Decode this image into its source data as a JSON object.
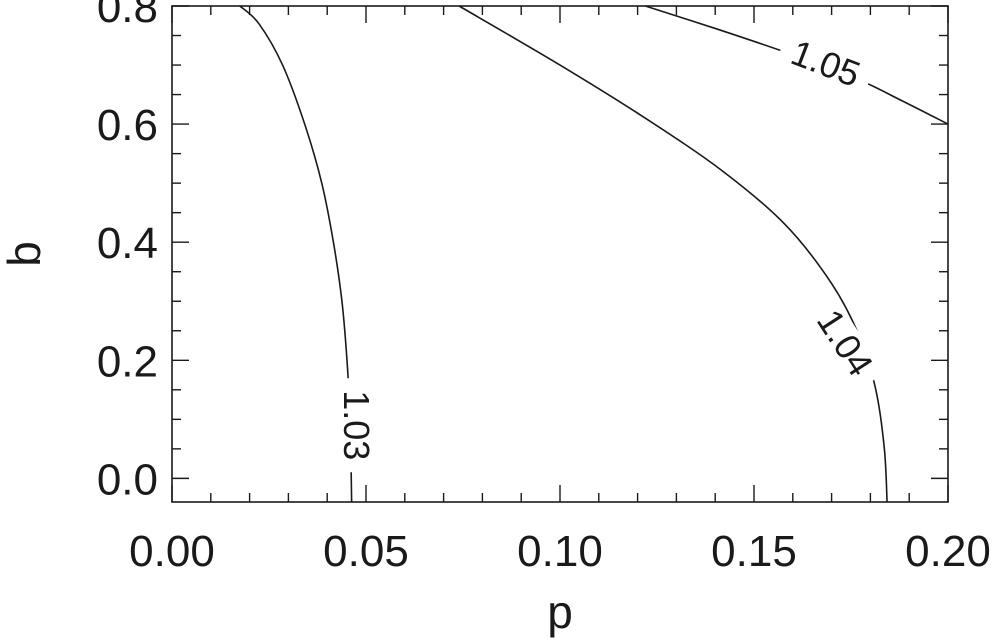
{
  "chart_data": {
    "type": "line",
    "plot_style": "contour",
    "title": "",
    "xlabel": "p",
    "ylabel": "b",
    "xlim": [
      0.0,
      0.2
    ],
    "ylim": [
      -0.04,
      0.8
    ],
    "x_ticks": [
      0.0,
      0.05,
      0.1,
      0.15,
      0.2
    ],
    "x_tick_labels": [
      "0.00",
      "0.05",
      "0.10",
      "0.15",
      "0.20"
    ],
    "y_ticks": [
      0.0,
      0.2,
      0.4,
      0.6,
      0.8
    ],
    "y_tick_labels": [
      "0.0",
      "0.2",
      "0.4",
      "0.6",
      "0.8"
    ],
    "x_minor_step": 0.01,
    "y_minor_step": 0.05,
    "grid": false,
    "series": [
      {
        "label": "1.03",
        "x": [
          0.0463,
          0.0459,
          0.0451,
          0.0438,
          0.0416,
          0.0386,
          0.0342,
          0.0285,
          0.0224,
          0.0175
        ],
        "y": [
          -0.04,
          0.1,
          0.2,
          0.3,
          0.4,
          0.5,
          0.6,
          0.7,
          0.77,
          0.8
        ],
        "label_at": {
          "x": 0.0475,
          "y": 0.09,
          "rotation": 90
        }
      },
      {
        "label": "1.04",
        "x": [
          0.1843,
          0.1836,
          0.1814,
          0.1772,
          0.17,
          0.158,
          0.142,
          0.122,
          0.1,
          0.074
        ],
        "y": [
          -0.04,
          0.05,
          0.15,
          0.24,
          0.33,
          0.43,
          0.52,
          0.61,
          0.7,
          0.8
        ],
        "label_at": {
          "x": 0.1735,
          "y": 0.23,
          "rotation": 57
        }
      },
      {
        "label": "1.05",
        "x": [
          0.122,
          0.14,
          0.158,
          0.176,
          0.188,
          0.2
        ],
        "y": [
          0.8,
          0.762,
          0.722,
          0.678,
          0.64,
          0.6
        ],
        "label_at": {
          "x": 0.1685,
          "y": 0.703,
          "rotation": 21
        }
      }
    ]
  }
}
